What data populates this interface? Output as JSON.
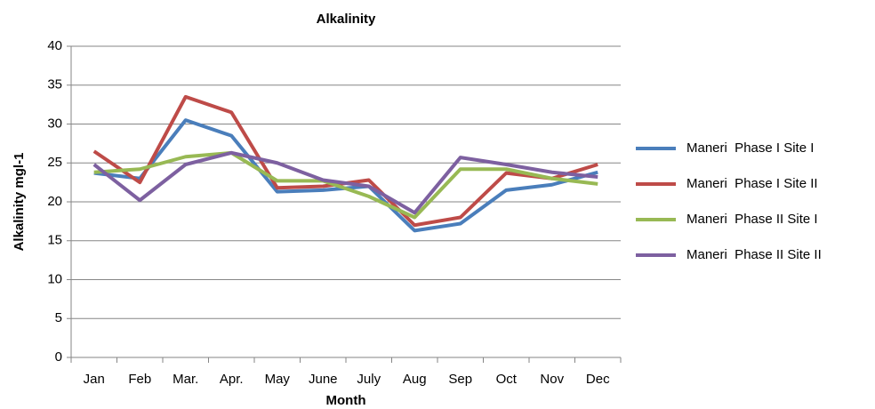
{
  "chart_data": {
    "type": "line",
    "title": "Alkalinity",
    "x_label": "Month",
    "y_label": "Alkalinity mgl-1",
    "categories": [
      "Jan",
      "Feb",
      "Mar.",
      "Apr.",
      "May",
      "June",
      "July",
      "Aug",
      "Sep",
      "Oct",
      "Nov",
      "Dec"
    ],
    "series": [
      {
        "name": "Maneri  Phase I Site I",
        "color": "#4a7ebb",
        "values": [
          23.7,
          23,
          30.5,
          28.5,
          21.3,
          21.5,
          22,
          16.3,
          17.2,
          21.5,
          22.2,
          23.8
        ]
      },
      {
        "name": "Maneri  Phase I Site II",
        "color": "#be4b48",
        "values": [
          26.5,
          22.5,
          33.5,
          31.5,
          21.8,
          22,
          22.8,
          17,
          18,
          23.7,
          23,
          24.8
        ]
      },
      {
        "name": "Maneri  Phase II Site I",
        "color": "#98b954",
        "values": [
          23.8,
          24.2,
          25.8,
          26.3,
          22.7,
          22.7,
          20.7,
          18,
          24.2,
          24.2,
          23,
          22.3
        ]
      },
      {
        "name": "Maneri  Phase II Site II",
        "color": "#7d60a0",
        "values": [
          24.8,
          20.2,
          24.8,
          26.3,
          25,
          22.8,
          22,
          18.6,
          25.7,
          24.8,
          23.8,
          23.2
        ]
      }
    ],
    "ylim": [
      0,
      40
    ],
    "yticks": [
      0,
      5,
      10,
      15,
      20,
      25,
      30,
      35,
      40
    ],
    "grid": true,
    "legend": "right"
  }
}
